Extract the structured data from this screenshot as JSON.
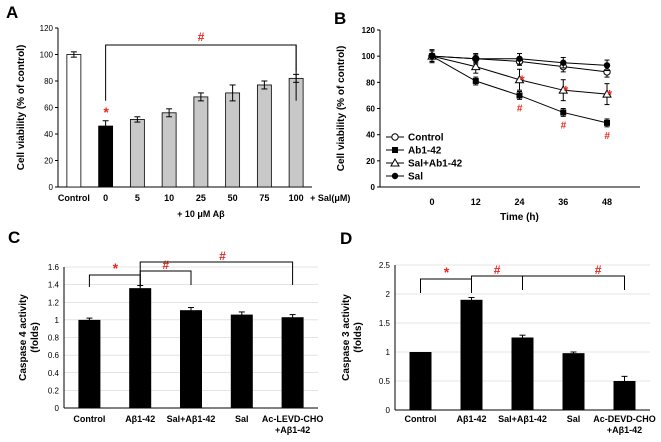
{
  "colors": {
    "bar_black": "#000000",
    "bar_gray": "#c8c8c8",
    "bar_white": "#ffffff",
    "sig_red": "#e8281e",
    "axis": "#000000"
  },
  "panels": {
    "A": "A",
    "B": "B",
    "C": "C",
    "D": "D"
  },
  "chart_data": [
    {
      "id": "A",
      "type": "bar",
      "ylabel": "Cell viability (% of control)",
      "ylim": [
        0,
        120
      ],
      "yticks": [
        0,
        20,
        40,
        60,
        80,
        100,
        120
      ],
      "categories": [
        "Control",
        "0",
        "5",
        "10",
        "25",
        "50",
        "75",
        "100"
      ],
      "values": [
        100,
        46,
        51,
        56,
        68,
        71,
        77,
        82
      ],
      "errors": [
        2,
        4,
        2,
        3,
        3,
        6,
        3,
        3
      ],
      "bar_colors": [
        "white",
        "black",
        "gray",
        "gray",
        "gray",
        "gray",
        "gray",
        "gray"
      ],
      "x_suffix": "+ Sal(μM)",
      "x_footer": "+ 10 μM Aβ",
      "sig_star": "*",
      "sig_hash": "#"
    },
    {
      "id": "B",
      "type": "line",
      "xlabel": "Time (h)",
      "ylabel": "Cell viability  (% of control)",
      "x": [
        0,
        12,
        24,
        36,
        48
      ],
      "ylim": [
        0,
        120
      ],
      "yticks": [
        0,
        20,
        40,
        60,
        80,
        100,
        120
      ],
      "series": [
        {
          "name": "Control",
          "marker": "open-circle",
          "values": [
            100,
            98,
            96,
            92,
            88
          ],
          "errors": [
            4,
            3,
            3,
            4,
            4
          ]
        },
        {
          "name": "Ab1-42",
          "marker": "filled-square",
          "values": [
            100,
            81,
            70,
            57,
            49
          ],
          "errors": [
            4,
            3,
            3,
            3,
            3
          ]
        },
        {
          "name": "Sal+Ab1-42",
          "marker": "open-triangle",
          "values": [
            100,
            92,
            82,
            74,
            71
          ],
          "errors": [
            4,
            5,
            8,
            8,
            8
          ]
        },
        {
          "name": "Sal",
          "marker": "filled-circle",
          "values": [
            100,
            98,
            98,
            95,
            93
          ],
          "errors": [
            5,
            4,
            4,
            4,
            4
          ]
        }
      ],
      "stars": [
        24,
        36,
        48
      ],
      "hashes": [
        24,
        36,
        48
      ],
      "sig_star": "*",
      "sig_hash": "#"
    },
    {
      "id": "C",
      "type": "bar",
      "ylabel": "Caspase 4 activity\n(folds)",
      "ylim": [
        0,
        1.6
      ],
      "yticks": [
        0,
        0.2,
        0.4,
        0.6,
        0.8,
        1,
        1.2,
        1.4,
        1.6
      ],
      "categories": [
        "Control",
        "Aβ1-42",
        "Sal+Aβ1-42",
        "Sal",
        "Ac-LEVD-CHO\n+Aβ1-42"
      ],
      "values": [
        1.0,
        1.36,
        1.11,
        1.06,
        1.03
      ],
      "errors": [
        0.02,
        0.03,
        0.03,
        0.03,
        0.03
      ],
      "sig_star": "*",
      "sig_hash": "#"
    },
    {
      "id": "D",
      "type": "bar",
      "ylabel": "Caspase 3 activity\n(folds)",
      "ylim": [
        0,
        2.5
      ],
      "yticks": [
        0,
        0.5,
        1,
        1.5,
        2,
        2.5
      ],
      "categories": [
        "Control",
        "Aβ1-42",
        "Sal+Aβ1-42",
        "Sal",
        "Ac-DEVD-CHO\n+Aβ1-42"
      ],
      "values": [
        1.0,
        1.9,
        1.25,
        0.98,
        0.5
      ],
      "errors": [
        0.0,
        0.04,
        0.04,
        0.02,
        0.08
      ],
      "sig_star": "*",
      "sig_hash": "#"
    }
  ]
}
